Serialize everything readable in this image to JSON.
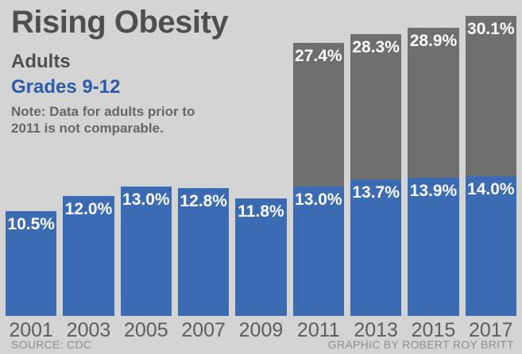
{
  "header": {
    "title": "Rising Obesity",
    "legend_adults": "Adults",
    "legend_grades": "Grades 9-12",
    "note_line1": "Note: Data for adults prior to",
    "note_line2": "2011 is not comparable."
  },
  "footer": {
    "source": "SOURCE: CDC",
    "credit": "GRAPHIC BY ROBERT ROY BRITT"
  },
  "colors": {
    "background": "#d4d4d4",
    "adults_bar": "#6f6f6f",
    "grades_bar": "#3b6bb3",
    "grades_text": "#2b5ca8",
    "bar_value_text": "#ffffff"
  },
  "chart_data": {
    "type": "bar",
    "categories": [
      "2001",
      "2003",
      "2005",
      "2007",
      "2009",
      "2011",
      "2013",
      "2015",
      "2017"
    ],
    "series": [
      {
        "name": "Adults",
        "color": "#6f6f6f",
        "values": [
          null,
          null,
          null,
          null,
          null,
          27.4,
          28.3,
          28.9,
          30.1
        ]
      },
      {
        "name": "Grades 9-12",
        "color": "#3b6bb3",
        "values": [
          10.5,
          12.0,
          13.0,
          12.8,
          11.8,
          13.0,
          13.7,
          13.9,
          14.0
        ]
      }
    ],
    "value_label_format": "percent_one_decimal",
    "title": "Rising Obesity",
    "xlabel": "",
    "ylabel": "",
    "ylim": [
      0,
      30.3
    ],
    "grid": false,
    "legend_position": "top-left-text",
    "note": "Note: Data for adults prior to 2011 is not comparable."
  }
}
